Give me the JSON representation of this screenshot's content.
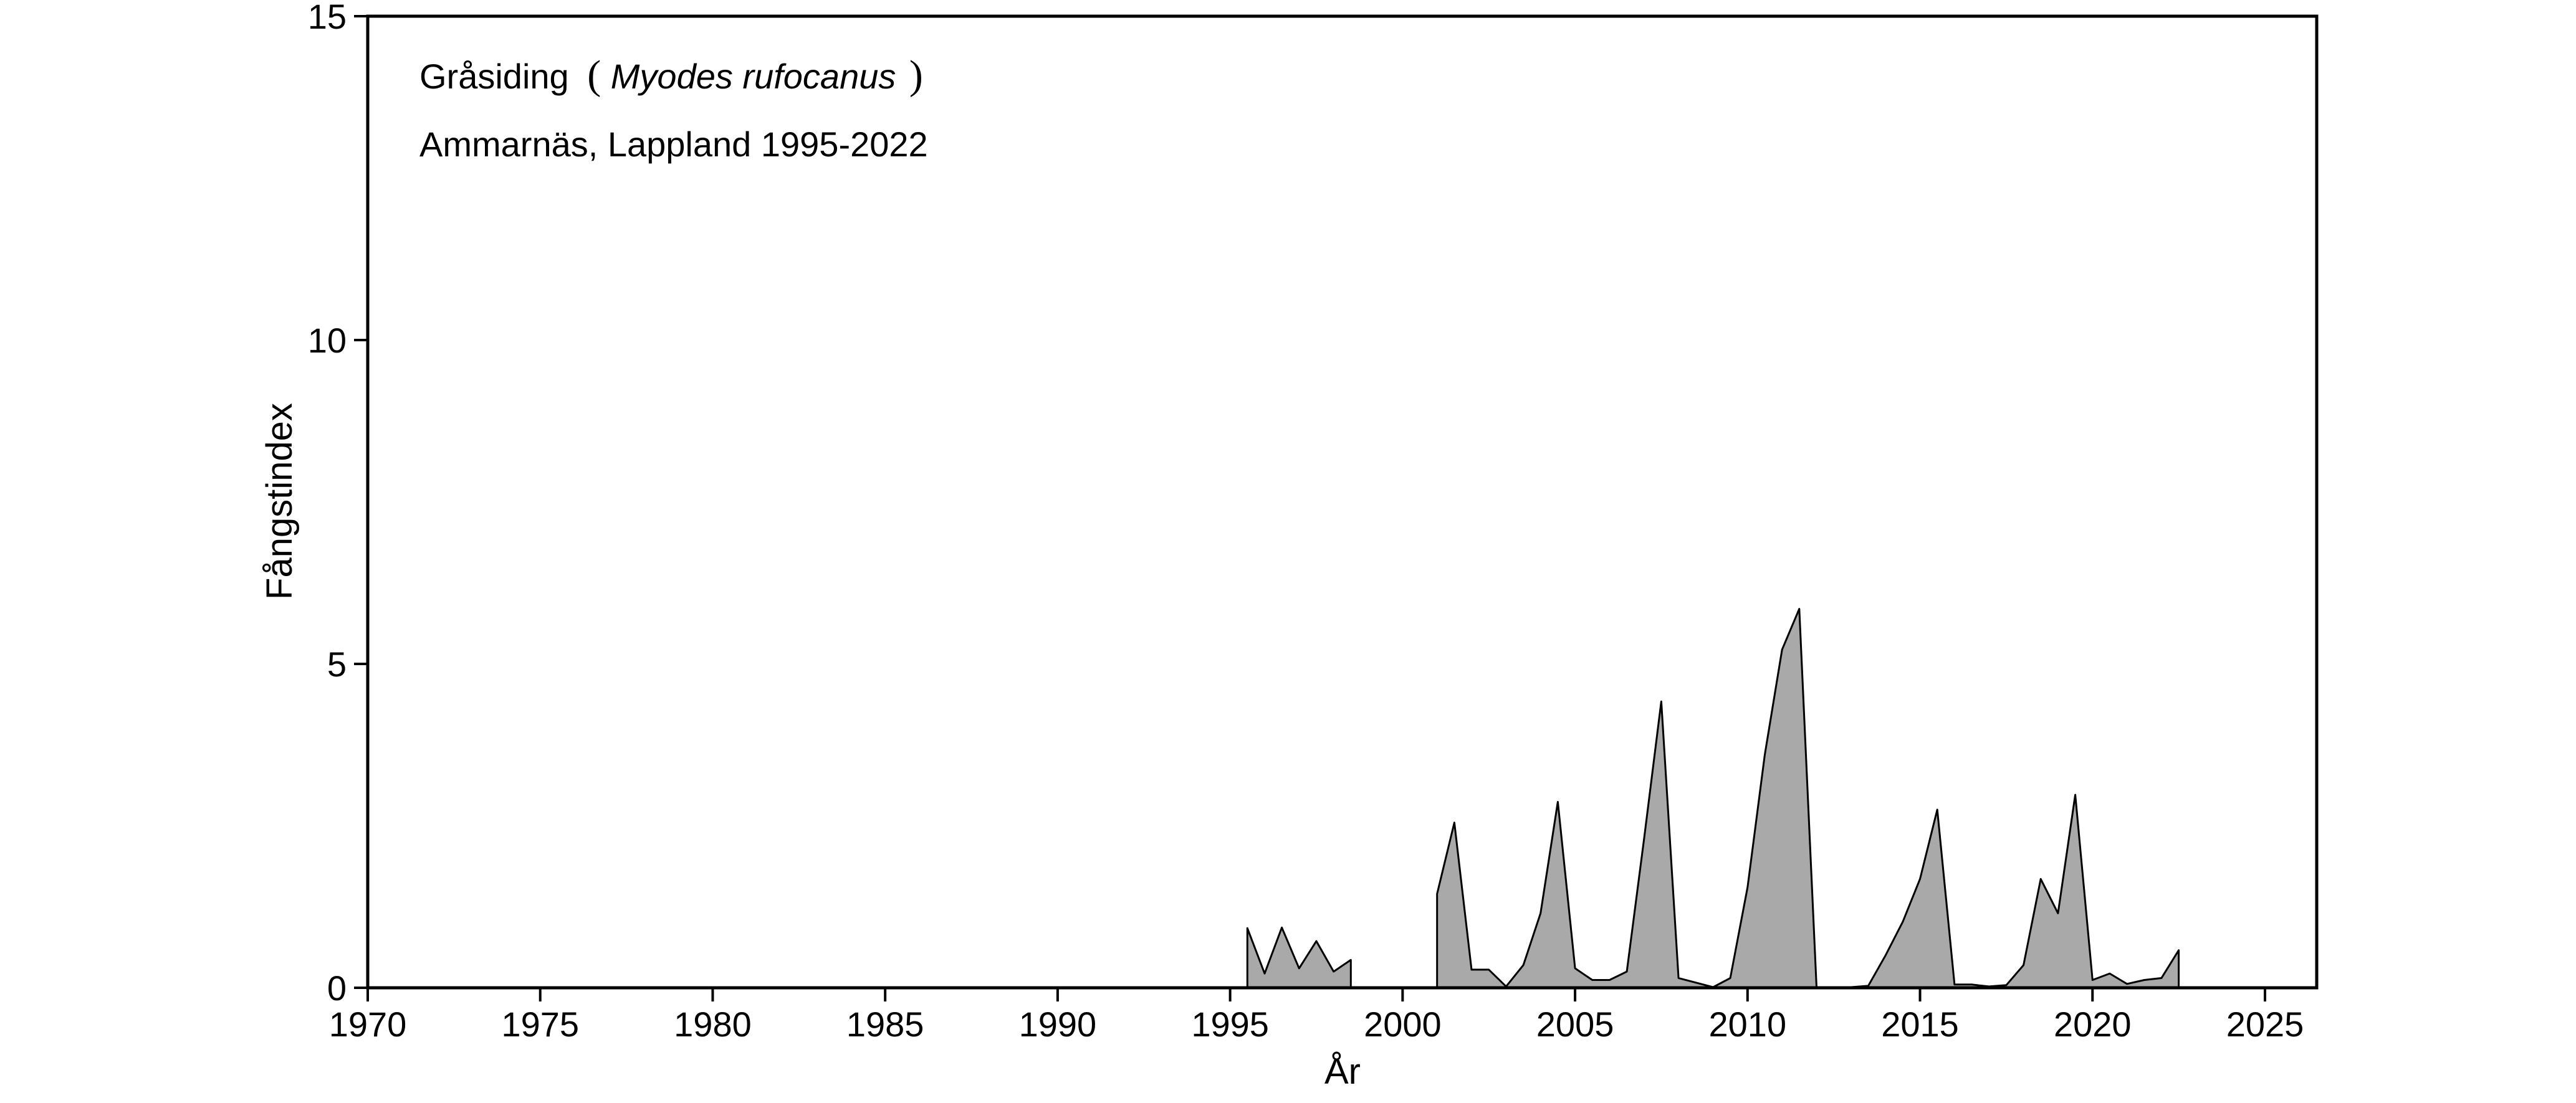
{
  "chart_data": {
    "type": "area",
    "title": "",
    "annotations": {
      "species_common": "Gråsiding",
      "species_latin": "Myodes rufocanus",
      "paren_open": "(",
      "paren_close": ")",
      "location": "Ammarnäs, Lappland 1995-2022"
    },
    "xlabel": "År",
    "ylabel": "Fångstindex",
    "xlim": [
      1970,
      2026.5
    ],
    "ylim": [
      0,
      15
    ],
    "xticks": [
      1970,
      1975,
      1980,
      1985,
      1990,
      1995,
      2000,
      2005,
      2010,
      2015,
      2020,
      2025
    ],
    "xtick_labels": [
      "1970",
      "1975",
      "1980",
      "1985",
      "1990",
      "1995",
      "2000",
      "2005",
      "2010",
      "2015",
      "2020",
      "2025"
    ],
    "yticks": [
      0,
      5,
      10,
      15
    ],
    "ytick_labels": [
      "0",
      "5",
      "10",
      "15"
    ],
    "grid": false,
    "fill_color": "#a9a9a9",
    "line_color": "#000000",
    "segments": [
      {
        "x": [
          1995.5,
          1996.0,
          1996.5,
          1997.0,
          1997.5,
          1998.0,
          1998.5
        ],
        "y": [
          0.92,
          0.22,
          0.93,
          0.3,
          0.72,
          0.25,
          0.43
        ]
      },
      {
        "x": [
          2001.0,
          2001.5,
          2002.0,
          2002.5,
          2003.0,
          2003.5,
          2004.0,
          2004.5,
          2005.0,
          2005.5,
          2006.0,
          2006.5,
          2007.0,
          2007.5,
          2008.0,
          2008.5,
          2009.0,
          2009.5,
          2010.0,
          2010.5,
          2011.0,
          2011.5,
          2012.0,
          2012.5,
          2013.0,
          2013.5,
          2014.0,
          2014.5,
          2015.0,
          2015.5,
          2016.0,
          2016.5,
          2017.0,
          2017.5,
          2018.0,
          2018.5,
          2019.0,
          2019.5,
          2020.0,
          2020.5,
          2021.0,
          2021.5,
          2022.0,
          2022.5
        ],
        "y": [
          1.45,
          2.55,
          0.28,
          0.28,
          0.02,
          0.35,
          1.15,
          2.87,
          0.3,
          0.12,
          0.12,
          0.25,
          2.3,
          4.42,
          0.15,
          0.08,
          0.01,
          0.15,
          1.55,
          3.6,
          5.22,
          5.85,
          0.01,
          0.01,
          0.01,
          0.03,
          0.5,
          1.02,
          1.68,
          2.75,
          0.05,
          0.05,
          0.02,
          0.04,
          0.35,
          1.68,
          1.15,
          2.98,
          0.12,
          0.22,
          0.06,
          0.12,
          0.15,
          0.58
        ]
      }
    ]
  }
}
